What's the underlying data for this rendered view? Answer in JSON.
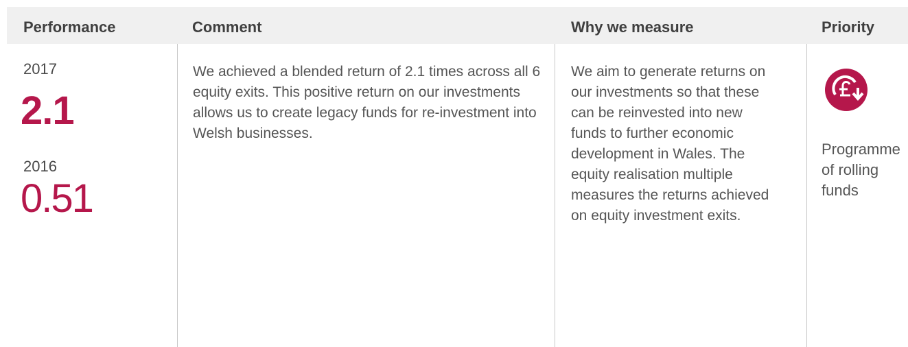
{
  "table": {
    "headers": [
      "Performance",
      "Comment",
      "Why we measure",
      "Priority"
    ],
    "rows": [
      {
        "performance": [
          {
            "year": 2017,
            "value": 2.1
          },
          {
            "year": 2016,
            "value": 0.51
          }
        ],
        "comment": "We achieved a blended return of 2.1 times across all 6 equity exits. This positive return on our investments allows us to create legacy funds for re-investment into Welsh businesses.",
        "why": "We aim to generate returns on our investments so that these can be reinvested into new funds to further economic development in Wales. The equity realisation multiple measures the returns achieved on equity investment exits.",
        "priority": "Programme of rolling funds"
      }
    ]
  }
}
